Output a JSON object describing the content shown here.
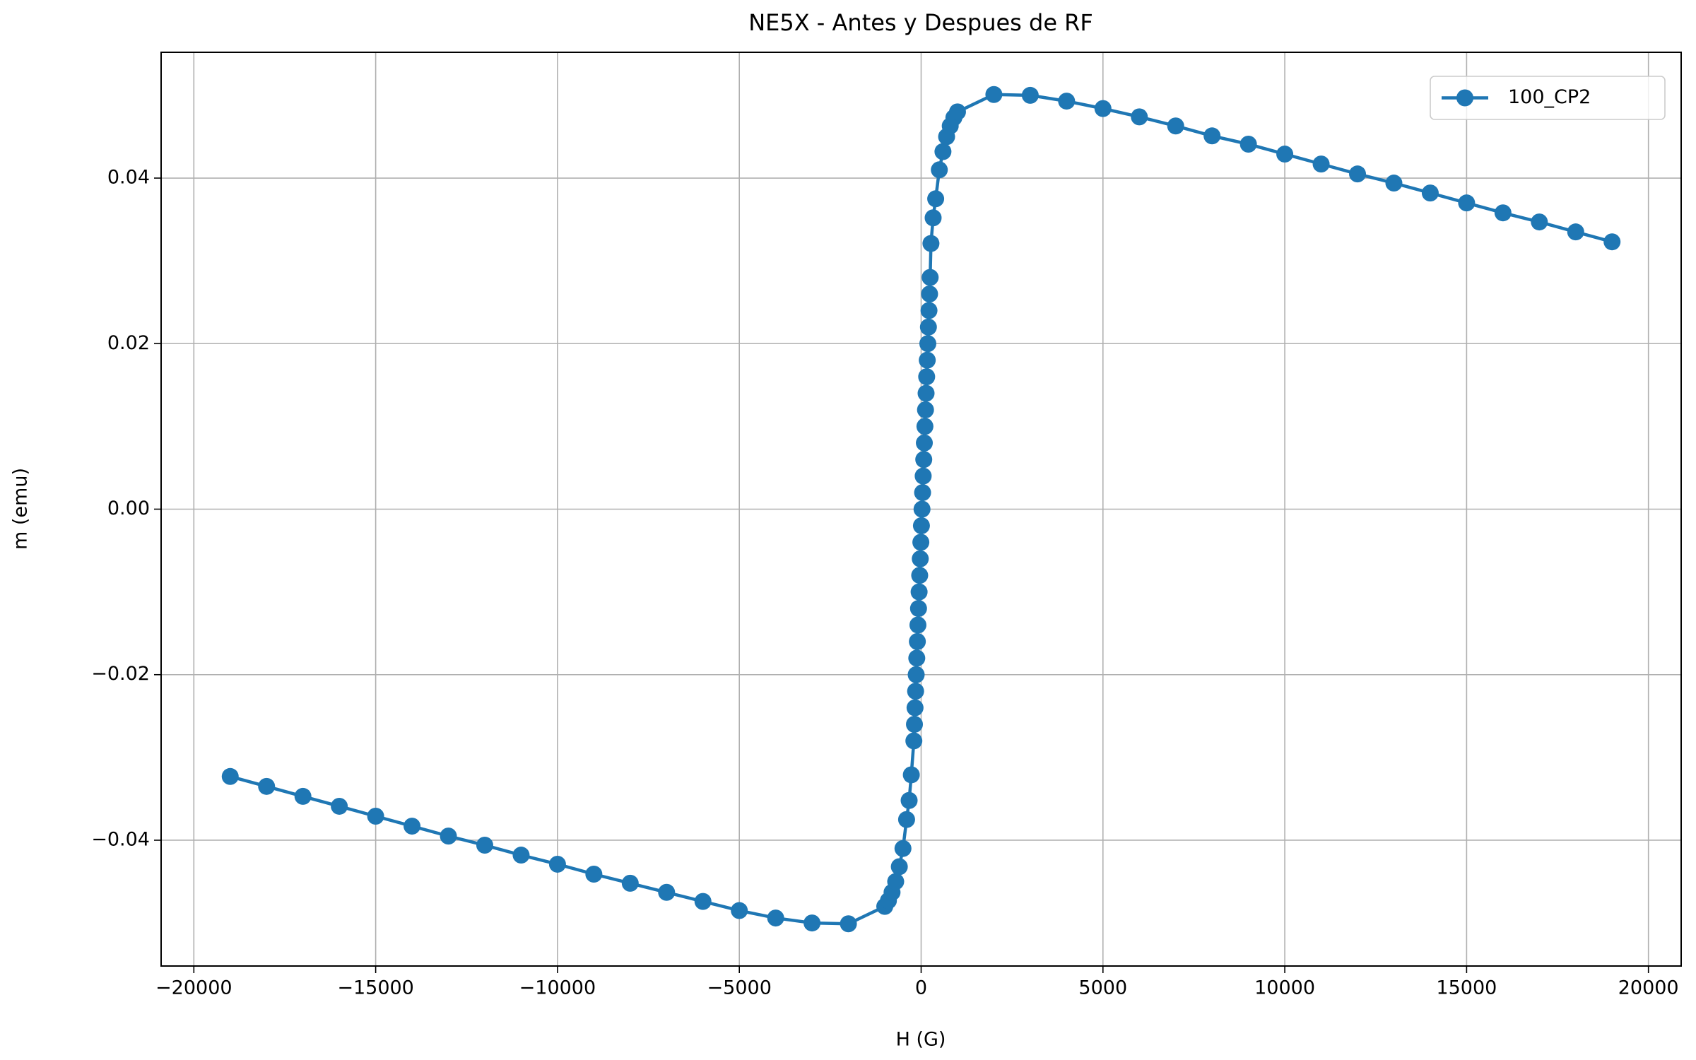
{
  "chart_data": {
    "type": "line",
    "title": "NE5X - Antes y Despues de RF",
    "x_label": "H (G)",
    "y_label": "m (emu)",
    "x": [
      -19000,
      -18000,
      -17000,
      -16000,
      -15000,
      -14000,
      -13000,
      -12000,
      -11000,
      -10000,
      -9000,
      -8000,
      -7000,
      -6000,
      -5000,
      -4000,
      -3000,
      -2000,
      -1000,
      -900,
      -800,
      -700,
      -600,
      -500,
      -400,
      -330,
      -270,
      -200,
      -184,
      -168,
      -152,
      -136,
      -120,
      -104,
      -88,
      -72,
      -56,
      -40,
      -24,
      -8,
      8,
      24,
      40,
      56,
      72,
      88,
      104,
      120,
      136,
      152,
      168,
      184,
      200,
      216,
      232,
      248,
      270,
      330,
      400,
      500,
      600,
      700,
      800,
      900,
      1000,
      2000,
      3000,
      4000,
      5000,
      6000,
      7000,
      8000,
      9000,
      10000,
      11000,
      12000,
      13000,
      14000,
      15000,
      16000,
      17000,
      18000,
      19000
    ],
    "series": [
      {
        "name": "100_CP2",
        "color": "#1f77b4",
        "values": [
          -0.0323,
          -0.0335,
          -0.0347,
          -0.0359,
          -0.0371,
          -0.0383,
          -0.0395,
          -0.0406,
          -0.0418,
          -0.0429,
          -0.0441,
          -0.0452,
          -0.0463,
          -0.0474,
          -0.0485,
          -0.0494,
          -0.05,
          -0.0501,
          -0.048,
          -0.0473,
          -0.0463,
          -0.045,
          -0.0432,
          -0.041,
          -0.0375,
          -0.0352,
          -0.0321,
          -0.028,
          -0.026,
          -0.024,
          -0.022,
          -0.02,
          -0.018,
          -0.016,
          -0.014,
          -0.012,
          -0.01,
          -0.008,
          -0.006,
          -0.004,
          -0.002,
          0,
          0.002,
          0.004,
          0.006,
          0.008,
          0.01,
          0.012,
          0.014,
          0.016,
          0.018,
          0.02,
          0.022,
          0.024,
          0.026,
          0.028,
          0.0321,
          0.0352,
          0.0375,
          0.041,
          0.0432,
          0.045,
          0.0463,
          0.0473,
          0.048,
          0.0501,
          0.05,
          0.0493,
          0.0484,
          0.0474,
          0.0463,
          0.0451,
          0.0441,
          0.0429,
          0.0417,
          0.0405,
          0.0394,
          0.0382,
          0.037,
          0.0358,
          0.0347,
          0.0335,
          0.0323
        ]
      }
    ],
    "xlim": [
      -20900,
      20900
    ],
    "xticks": [
      {
        "value": -20000,
        "label": "−20000"
      },
      {
        "value": -15000,
        "label": "−15000"
      },
      {
        "value": -10000,
        "label": "−10000"
      },
      {
        "value": -5000,
        "label": "−5000"
      },
      0,
      5000,
      10000,
      15000,
      20000
    ],
    "ylim": [
      -0.0552,
      0.0552
    ],
    "yticks": [
      {
        "value": -0.04,
        "label": "−0.04"
      },
      {
        "value": -0.02,
        "label": "−0.02"
      },
      {
        "value": 0,
        "label": "0.00"
      },
      0.02,
      0.04
    ],
    "grid": true,
    "legend": "upper right"
  }
}
